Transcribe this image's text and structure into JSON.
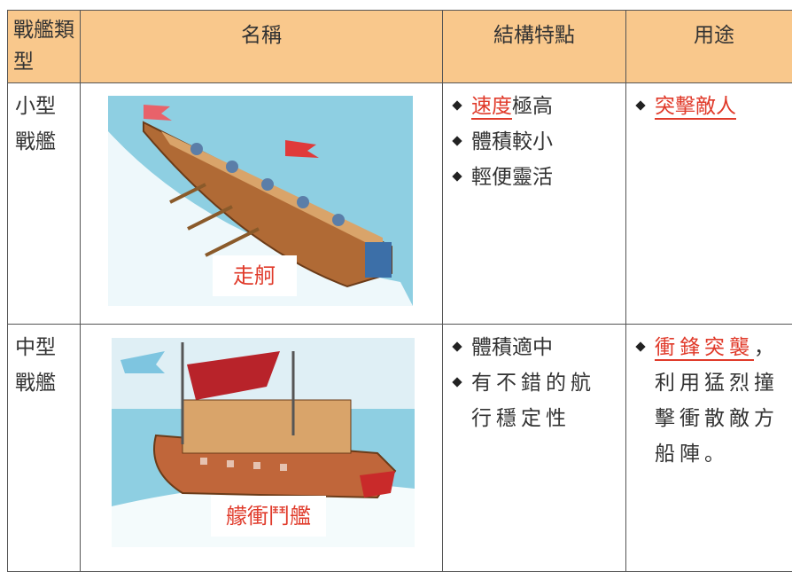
{
  "table": {
    "headers": [
      "戰艦類型",
      "名稱",
      "結構特點",
      "用途"
    ],
    "rows": [
      {
        "type": "小型戰艦",
        "name": "走舸",
        "features": [
          {
            "highlight": "速度",
            "text": "極高"
          },
          "體積較小",
          "輕便靈活"
        ],
        "uses": [
          {
            "highlight": "突擊敵人",
            "text": ""
          }
        ]
      },
      {
        "type": "中型戰艦",
        "name": "艨衝鬥艦",
        "features": [
          "體積適中",
          "有不錯的航行穩定性"
        ],
        "uses": [
          {
            "highlight": "衝鋒突襲",
            "text": "，利用猛烈撞擊衝散敵方船陣。"
          }
        ]
      }
    ]
  }
}
